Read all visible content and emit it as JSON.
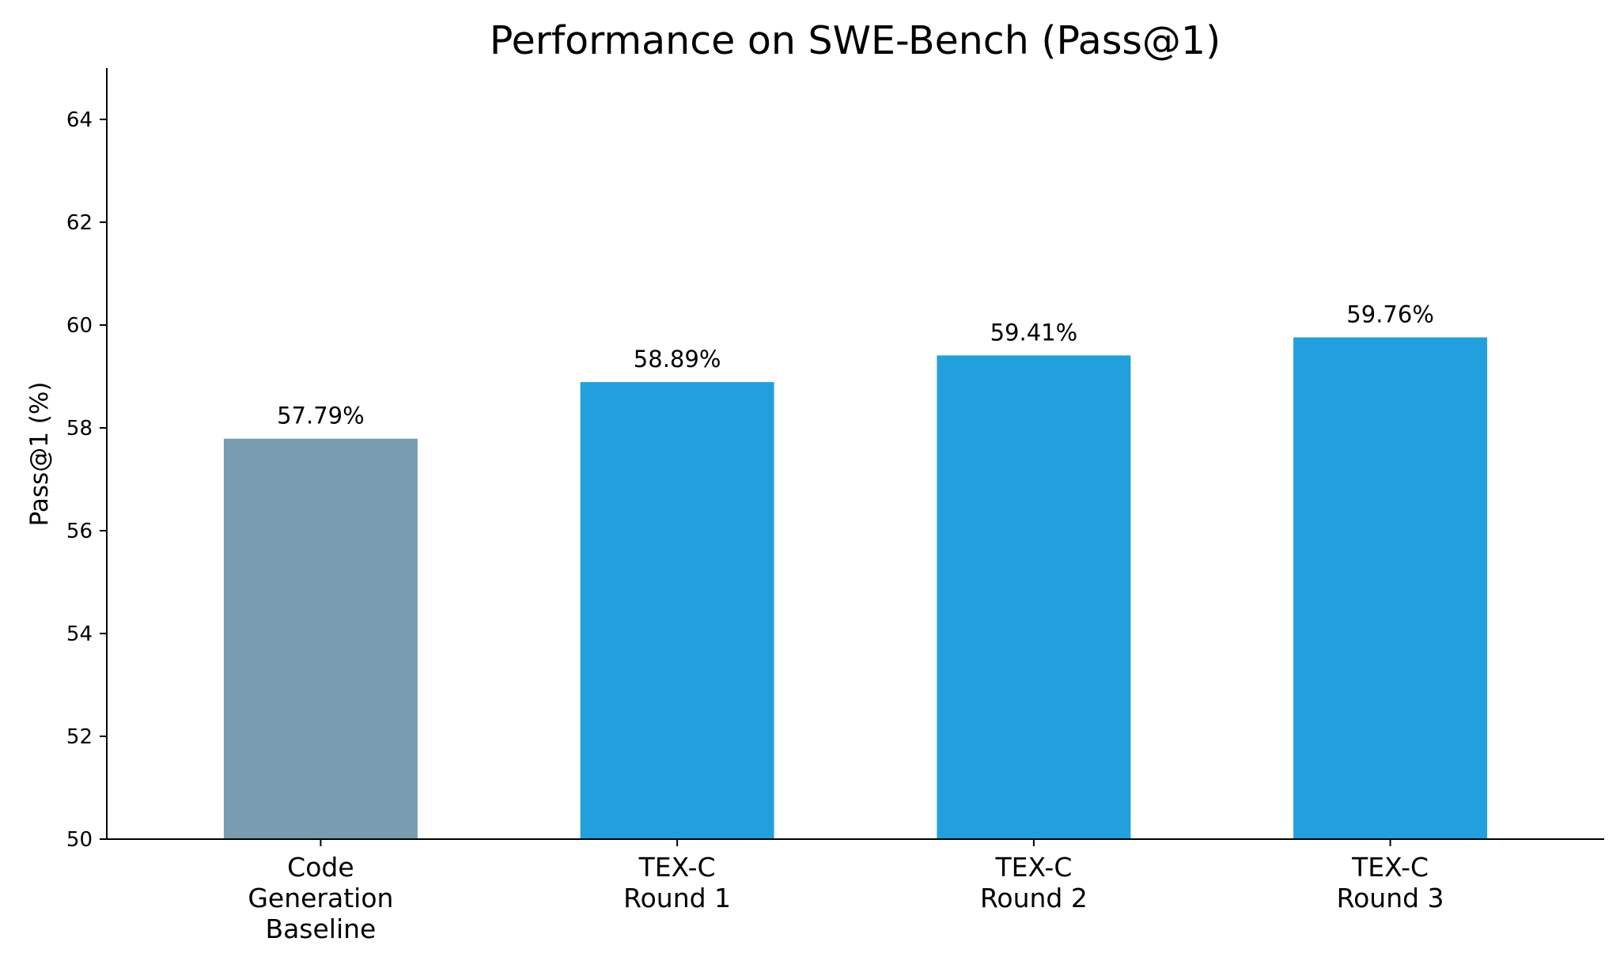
{
  "chart_data": {
    "type": "bar",
    "title": "Performance on SWE-Bench (Pass@1)",
    "xlabel": "",
    "ylabel": "Pass@1 (%)",
    "ylim": [
      50,
      65
    ],
    "yticks": [
      50,
      52,
      54,
      56,
      58,
      60,
      62,
      64
    ],
    "grid": false,
    "legend": "none",
    "categories": [
      [
        "Code",
        "Generation",
        "Baseline"
      ],
      [
        "TEX-C",
        "Round 1"
      ],
      [
        "TEX-C",
        "Round 2"
      ],
      [
        "TEX-C",
        "Round 3"
      ]
    ],
    "values": [
      57.79,
      58.89,
      59.41,
      59.76
    ],
    "value_labels": [
      "57.79%",
      "58.89%",
      "59.41%",
      "59.76%"
    ],
    "colors": [
      "#789cb0",
      "#22a0de",
      "#22a0de",
      "#22a0de"
    ]
  }
}
